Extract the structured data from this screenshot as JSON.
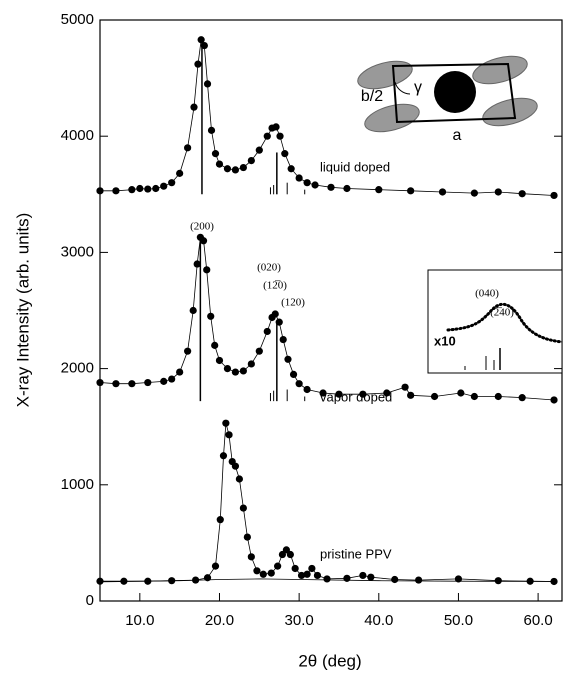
{
  "chart_data": {
    "type": "line",
    "xlabel": "2θ (deg)",
    "ylabel": "X-ray Intensity (arb. units)",
    "xlim": [
      5,
      63
    ],
    "ylim": [
      0,
      5000
    ],
    "xticks": [
      {
        "value": 10,
        "label": "10.0"
      },
      {
        "value": 20,
        "label": "20.0"
      },
      {
        "value": 30,
        "label": "30.0"
      },
      {
        "value": 40,
        "label": "40.0"
      },
      {
        "value": 50,
        "label": "50.0"
      },
      {
        "value": 60,
        "label": "60.0"
      }
    ],
    "yticks": [
      0,
      1000,
      2000,
      3000,
      4000,
      5000
    ],
    "color": "#000000",
    "series": [
      {
        "markers": true,
        "x": [
          5,
          7,
          9,
          10,
          11,
          12,
          13,
          14,
          15,
          16,
          16.8,
          17.3,
          17.7,
          18.1,
          18.5,
          19,
          19.5,
          20,
          21,
          22,
          23,
          24,
          25,
          26,
          26.6,
          27.1,
          27.6,
          28.2,
          29,
          30,
          31,
          32,
          34,
          36,
          40,
          44,
          48,
          52,
          55,
          58,
          62
        ],
        "values": [
          3530,
          3530,
          3540,
          3550,
          3545,
          3550,
          3570,
          3600,
          3680,
          3900,
          4250,
          4620,
          4830,
          4780,
          4450,
          4050,
          3850,
          3760,
          3720,
          3710,
          3730,
          3790,
          3880,
          4000,
          4070,
          4080,
          4000,
          3850,
          3720,
          3640,
          3600,
          3580,
          3560,
          3550,
          3540,
          3530,
          3520,
          3510,
          3520,
          3505,
          3490
        ]
      },
      {
        "markers": true,
        "x": [
          5,
          7,
          9,
          11,
          13,
          14,
          15,
          16,
          16.7,
          17.2,
          17.6,
          18,
          18.4,
          18.9,
          19.4,
          20,
          21,
          22,
          23,
          24,
          25,
          26,
          26.6,
          27,
          27.5,
          28,
          28.6,
          29.3,
          30,
          31,
          33,
          35,
          38,
          41,
          43.3,
          44,
          47,
          50.3,
          52,
          55,
          58,
          62
        ],
        "values": [
          1880,
          1870,
          1870,
          1880,
          1890,
          1910,
          1970,
          2150,
          2500,
          2900,
          3130,
          3100,
          2850,
          2450,
          2200,
          2070,
          2000,
          1970,
          1980,
          2040,
          2150,
          2320,
          2440,
          2470,
          2400,
          2250,
          2080,
          1950,
          1870,
          1820,
          1790,
          1780,
          1780,
          1790,
          1840,
          1770,
          1760,
          1790,
          1760,
          1760,
          1750,
          1730
        ]
      },
      {
        "markers": true,
        "x": [
          5,
          8,
          11,
          14,
          17,
          18.5,
          19.5,
          20.1,
          20.5,
          20.8,
          21.2,
          21.6,
          22,
          22.5,
          23,
          23.5,
          24,
          24.7,
          25.5,
          26.5,
          27.3,
          27.9,
          28.4,
          28.9,
          29.5,
          30.3,
          31,
          31.6,
          32.3,
          33.5,
          36,
          38,
          39,
          42,
          45,
          50,
          55,
          59,
          62
        ],
        "values": [
          170,
          170,
          170,
          175,
          180,
          200,
          300,
          700,
          1250,
          1530,
          1430,
          1200,
          1160,
          1050,
          800,
          550,
          380,
          260,
          230,
          240,
          300,
          400,
          440,
          400,
          280,
          220,
          230,
          280,
          220,
          190,
          195,
          220,
          205,
          185,
          180,
          190,
          175,
          170,
          168
        ]
      },
      {
        "markers": false,
        "x": [
          5,
          15,
          20,
          25,
          30,
          40,
          50,
          62
        ],
        "values": [
          165,
          175,
          185,
          190,
          185,
          175,
          170,
          168
        ]
      }
    ],
    "sticks": [
      {
        "base": 3500,
        "x": [
          17.8,
          26.4,
          26.8,
          27.2,
          28.5,
          30.7
        ],
        "values": [
          4810,
          3560,
          3580,
          3860,
          3600,
          3540
        ]
      },
      {
        "base": 1720,
        "x": [
          17.6,
          26.4,
          26.8,
          27.2,
          28.5,
          30.7
        ],
        "values": [
          3100,
          1790,
          1810,
          2400,
          1820,
          1760
        ]
      }
    ],
    "annotations": [
      "liquid doped",
      "vapor doped",
      "pristine PPV",
      "(200)",
      "(020)",
      "(12̅0)",
      "(120)"
    ],
    "inset": {
      "labels": [
        "(040)",
        "(2̅40)",
        "x10"
      ]
    },
    "schematic": {
      "labels": [
        "b/2",
        "γ",
        "a"
      ]
    }
  }
}
